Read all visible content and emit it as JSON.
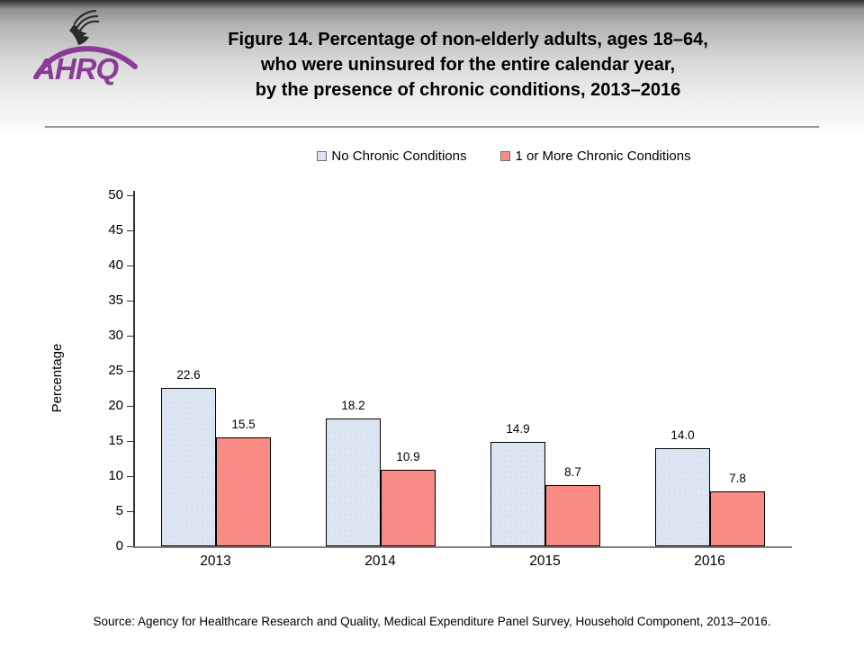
{
  "header": {
    "logo": {
      "text": "AHRQ",
      "color": "#8B3B97"
    },
    "title_lines": [
      "Figure 14. Percentage of non-elderly adults, ages 18–64,",
      "who were uninsured for the entire calendar year,",
      "by the presence of chronic conditions, 2013–2016"
    ]
  },
  "chart_data": {
    "type": "bar",
    "title": "",
    "categories": [
      "2013",
      "2014",
      "2015",
      "2016"
    ],
    "series": [
      {
        "name": "No Chronic Conditions",
        "values": [
          22.6,
          18.2,
          14.9,
          14.0
        ],
        "fill": "#DCE6F2",
        "pattern": "fill-blue"
      },
      {
        "name": "1 or More Chronic Conditions",
        "values": [
          15.5,
          10.9,
          8.7,
          7.8
        ],
        "fill": "#FA8A8A",
        "pattern": "fill-pink"
      }
    ],
    "xlabel": "",
    "ylabel": "Percentage",
    "ylim": [
      0,
      50
    ],
    "ytick_step": 5,
    "grid": false,
    "legend_position": "top",
    "bar_labels": true,
    "axis_color": "#333333",
    "baseline_color": "#7f7f7f"
  },
  "source": "Source: Agency for Healthcare Research and Quality, Medical Expenditure Panel Survey, Household Component, 2013–2016."
}
